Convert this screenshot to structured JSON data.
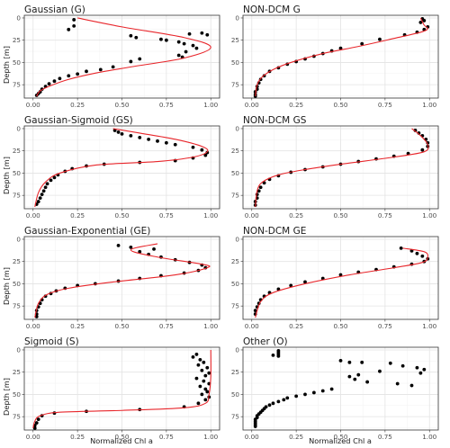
{
  "chart_data": {
    "type": "scatter",
    "facet_layout": "4x2",
    "xlabel": "Normalized Chl a",
    "ylabel": "Depth [m]",
    "xlim": [
      0,
      1
    ],
    "ylim": [
      90,
      -3
    ],
    "y_reversed": true,
    "x_ticks": [
      "0.00",
      "0.25",
      "0.50",
      "0.75",
      "1.00"
    ],
    "x_tick_values": [
      0,
      0.25,
      0.5,
      0.75,
      1.0
    ],
    "y_ticks": [
      "0",
      "25",
      "50",
      "75"
    ],
    "y_tick_values": [
      0,
      25,
      50,
      75
    ],
    "grid": true,
    "point_color": "#000000",
    "line_color": "#e8262b",
    "panels": [
      {
        "title": "Gaussian (G)",
        "fit_curve": [
          [
            0.25,
            0
          ],
          [
            0.5,
            10
          ],
          [
            0.85,
            22
          ],
          [
            1.0,
            33
          ],
          [
            0.85,
            45
          ],
          [
            0.55,
            55
          ],
          [
            0.35,
            62
          ],
          [
            0.2,
            69
          ],
          [
            0.1,
            76
          ],
          [
            0.04,
            82
          ],
          [
            0.02,
            88
          ]
        ],
        "points": [
          [
            0.23,
            2
          ],
          [
            0.23,
            9
          ],
          [
            0.2,
            13
          ],
          [
            0.95,
            17
          ],
          [
            0.88,
            18
          ],
          [
            0.98,
            19
          ],
          [
            0.55,
            20
          ],
          [
            0.58,
            22
          ],
          [
            0.72,
            24
          ],
          [
            0.75,
            25
          ],
          [
            0.82,
            27
          ],
          [
            0.85,
            29
          ],
          [
            0.9,
            31
          ],
          [
            0.92,
            34
          ],
          [
            0.86,
            38
          ],
          [
            0.82,
            42
          ],
          [
            0.84,
            44
          ],
          [
            0.6,
            46
          ],
          [
            0.55,
            49
          ],
          [
            0.45,
            55
          ],
          [
            0.38,
            58
          ],
          [
            0.3,
            60
          ],
          [
            0.25,
            63
          ],
          [
            0.2,
            65
          ],
          [
            0.15,
            68
          ],
          [
            0.12,
            71
          ],
          [
            0.09,
            74
          ],
          [
            0.07,
            77
          ],
          [
            0.05,
            80
          ],
          [
            0.04,
            83
          ],
          [
            0.03,
            85
          ],
          [
            0.02,
            87
          ]
        ]
      },
      {
        "title": "NON-DCM G",
        "fit_curve": [
          [
            0.95,
            0
          ],
          [
            0.97,
            8
          ],
          [
            0.99,
            12
          ],
          [
            0.95,
            16
          ],
          [
            0.8,
            23
          ],
          [
            0.6,
            32
          ],
          [
            0.4,
            40
          ],
          [
            0.22,
            50
          ],
          [
            0.12,
            58
          ],
          [
            0.06,
            66
          ],
          [
            0.03,
            75
          ],
          [
            0.02,
            88
          ]
        ],
        "points": [
          [
            0.96,
            1
          ],
          [
            0.97,
            3
          ],
          [
            0.95,
            5
          ],
          [
            0.99,
            10
          ],
          [
            0.97,
            13
          ],
          [
            0.93,
            16
          ],
          [
            0.86,
            19
          ],
          [
            0.72,
            24
          ],
          [
            0.62,
            29
          ],
          [
            0.5,
            34
          ],
          [
            0.45,
            37
          ],
          [
            0.4,
            40
          ],
          [
            0.35,
            43
          ],
          [
            0.3,
            46
          ],
          [
            0.25,
            49
          ],
          [
            0.2,
            52
          ],
          [
            0.15,
            56
          ],
          [
            0.1,
            60
          ],
          [
            0.07,
            65
          ],
          [
            0.05,
            69
          ],
          [
            0.04,
            73
          ],
          [
            0.03,
            77
          ],
          [
            0.03,
            80
          ],
          [
            0.02,
            83
          ],
          [
            0.02,
            86
          ],
          [
            0.02,
            88
          ]
        ]
      },
      {
        "title": "Gaussian-Sigmoid (GS)",
        "fit_curve": [
          [
            0.45,
            0
          ],
          [
            0.6,
            5
          ],
          [
            0.8,
            12
          ],
          [
            0.95,
            20
          ],
          [
            0.98,
            26
          ],
          [
            0.9,
            32
          ],
          [
            0.7,
            37
          ],
          [
            0.35,
            41
          ],
          [
            0.15,
            50
          ],
          [
            0.07,
            60
          ],
          [
            0.03,
            72
          ],
          [
            0.01,
            88
          ]
        ],
        "points": [
          [
            0.46,
            2
          ],
          [
            0.48,
            4
          ],
          [
            0.5,
            6
          ],
          [
            0.55,
            8
          ],
          [
            0.6,
            10
          ],
          [
            0.65,
            12
          ],
          [
            0.7,
            14
          ],
          [
            0.75,
            16
          ],
          [
            0.8,
            18
          ],
          [
            0.9,
            21
          ],
          [
            0.95,
            24
          ],
          [
            0.98,
            27
          ],
          [
            0.97,
            30
          ],
          [
            0.9,
            33
          ],
          [
            0.8,
            36
          ],
          [
            0.6,
            38
          ],
          [
            0.4,
            40
          ],
          [
            0.3,
            42
          ],
          [
            0.22,
            45
          ],
          [
            0.18,
            48
          ],
          [
            0.14,
            52
          ],
          [
            0.12,
            55
          ],
          [
            0.1,
            58
          ],
          [
            0.08,
            62
          ],
          [
            0.07,
            66
          ],
          [
            0.06,
            70
          ],
          [
            0.05,
            74
          ],
          [
            0.04,
            78
          ],
          [
            0.03,
            82
          ],
          [
            0.02,
            85
          ]
        ]
      },
      {
        "title": "NON-DCM GS",
        "fit_curve": [
          [
            0.9,
            0
          ],
          [
            0.95,
            8
          ],
          [
            0.99,
            18
          ],
          [
            0.97,
            26
          ],
          [
            0.8,
            32
          ],
          [
            0.5,
            40
          ],
          [
            0.3,
            46
          ],
          [
            0.15,
            52
          ],
          [
            0.06,
            60
          ],
          [
            0.03,
            70
          ],
          [
            0.02,
            88
          ]
        ],
        "points": [
          [
            0.92,
            2
          ],
          [
            0.94,
            5
          ],
          [
            0.96,
            8
          ],
          [
            0.98,
            12
          ],
          [
            0.99,
            16
          ],
          [
            0.99,
            20
          ],
          [
            0.96,
            24
          ],
          [
            0.88,
            28
          ],
          [
            0.8,
            31
          ],
          [
            0.7,
            34
          ],
          [
            0.6,
            37
          ],
          [
            0.5,
            40
          ],
          [
            0.4,
            43
          ],
          [
            0.3,
            46
          ],
          [
            0.22,
            49
          ],
          [
            0.15,
            53
          ],
          [
            0.1,
            57
          ],
          [
            0.07,
            61
          ],
          [
            0.05,
            66
          ],
          [
            0.04,
            70
          ],
          [
            0.03,
            74
          ],
          [
            0.03,
            78
          ],
          [
            0.02,
            82
          ],
          [
            0.02,
            86
          ]
        ]
      },
      {
        "title": "Gaussian-Exponential (GE)",
        "fit_curve": [
          [
            0.7,
            5
          ],
          [
            0.55,
            12
          ],
          [
            0.7,
            20
          ],
          [
            0.95,
            28
          ],
          [
            0.98,
            32
          ],
          [
            0.8,
            40
          ],
          [
            0.45,
            48
          ],
          [
            0.2,
            55
          ],
          [
            0.08,
            62
          ],
          [
            0.03,
            72
          ],
          [
            0.01,
            88
          ]
        ],
        "points": [
          [
            0.48,
            7
          ],
          [
            0.55,
            9
          ],
          [
            0.68,
            11
          ],
          [
            0.6,
            14
          ],
          [
            0.65,
            17
          ],
          [
            0.72,
            20
          ],
          [
            0.8,
            23
          ],
          [
            0.88,
            26
          ],
          [
            0.95,
            29
          ],
          [
            0.97,
            32
          ],
          [
            0.93,
            35
          ],
          [
            0.85,
            38
          ],
          [
            0.72,
            41
          ],
          [
            0.6,
            44
          ],
          [
            0.48,
            47
          ],
          [
            0.35,
            50
          ],
          [
            0.25,
            52
          ],
          [
            0.18,
            55
          ],
          [
            0.13,
            58
          ],
          [
            0.1,
            61
          ],
          [
            0.07,
            64
          ],
          [
            0.05,
            68
          ],
          [
            0.04,
            72
          ],
          [
            0.03,
            76
          ],
          [
            0.02,
            80
          ],
          [
            0.02,
            84
          ],
          [
            0.02,
            87
          ]
        ]
      },
      {
        "title": "NON-DCM GE",
        "fit_curve": [
          [
            0.85,
            10
          ],
          [
            0.97,
            14
          ],
          [
            0.99,
            20
          ],
          [
            0.96,
            26
          ],
          [
            0.8,
            32
          ],
          [
            0.55,
            40
          ],
          [
            0.3,
            50
          ],
          [
            0.12,
            60
          ],
          [
            0.05,
            70
          ],
          [
            0.02,
            88
          ]
        ],
        "points": [
          [
            0.84,
            10
          ],
          [
            0.9,
            13
          ],
          [
            0.93,
            16
          ],
          [
            0.96,
            19
          ],
          [
            0.99,
            22
          ],
          [
            0.97,
            25
          ],
          [
            0.9,
            28
          ],
          [
            0.8,
            31
          ],
          [
            0.7,
            34
          ],
          [
            0.6,
            37
          ],
          [
            0.5,
            40
          ],
          [
            0.4,
            44
          ],
          [
            0.3,
            48
          ],
          [
            0.22,
            52
          ],
          [
            0.15,
            56
          ],
          [
            0.1,
            60
          ],
          [
            0.07,
            64
          ],
          [
            0.05,
            68
          ],
          [
            0.04,
            72
          ],
          [
            0.03,
            76
          ],
          [
            0.02,
            80
          ],
          [
            0.02,
            84
          ]
        ]
      },
      {
        "title": "Sigmoid (S)",
        "fit_curve": [
          [
            1.0,
            0
          ],
          [
            1.0,
            30
          ],
          [
            0.99,
            50
          ],
          [
            0.97,
            60
          ],
          [
            0.85,
            65
          ],
          [
            0.5,
            68
          ],
          [
            0.15,
            70
          ],
          [
            0.04,
            74
          ],
          [
            0.01,
            80
          ],
          [
            0.0,
            88
          ]
        ],
        "points": [
          [
            0.92,
            5
          ],
          [
            0.9,
            8
          ],
          [
            0.94,
            11
          ],
          [
            0.96,
            14
          ],
          [
            0.93,
            17
          ],
          [
            0.98,
            20
          ],
          [
            0.95,
            23
          ],
          [
            0.99,
            26
          ],
          [
            0.97,
            29
          ],
          [
            0.92,
            32
          ],
          [
            0.96,
            35
          ],
          [
            0.99,
            38
          ],
          [
            0.94,
            41
          ],
          [
            0.97,
            44
          ],
          [
            0.98,
            47
          ],
          [
            0.95,
            50
          ],
          [
            0.99,
            53
          ],
          [
            0.97,
            56
          ],
          [
            0.93,
            60
          ],
          [
            0.85,
            64
          ],
          [
            0.6,
            67
          ],
          [
            0.3,
            69
          ],
          [
            0.12,
            71
          ],
          [
            0.05,
            74
          ],
          [
            0.03,
            78
          ],
          [
            0.02,
            82
          ],
          [
            0.01,
            85
          ],
          [
            0.01,
            88
          ]
        ]
      },
      {
        "title": "Other (O)",
        "fit_curve": [],
        "points": [
          [
            0.15,
            1
          ],
          [
            0.15,
            3
          ],
          [
            0.15,
            5
          ],
          [
            0.15,
            7
          ],
          [
            0.12,
            6
          ],
          [
            0.5,
            12
          ],
          [
            0.55,
            14
          ],
          [
            0.62,
            14
          ],
          [
            0.78,
            15
          ],
          [
            0.85,
            18
          ],
          [
            0.93,
            20
          ],
          [
            0.97,
            22
          ],
          [
            0.72,
            24
          ],
          [
            0.95,
            26
          ],
          [
            0.6,
            28
          ],
          [
            0.55,
            30
          ],
          [
            0.58,
            33
          ],
          [
            0.65,
            36
          ],
          [
            0.82,
            38
          ],
          [
            0.9,
            40
          ],
          [
            0.45,
            44
          ],
          [
            0.4,
            46
          ],
          [
            0.35,
            48
          ],
          [
            0.3,
            50
          ],
          [
            0.25,
            52
          ],
          [
            0.2,
            54
          ],
          [
            0.18,
            56
          ],
          [
            0.15,
            58
          ],
          [
            0.12,
            60
          ],
          [
            0.1,
            62
          ],
          [
            0.08,
            64
          ],
          [
            0.07,
            66
          ],
          [
            0.06,
            68
          ],
          [
            0.05,
            70
          ],
          [
            0.04,
            72
          ],
          [
            0.03,
            74
          ],
          [
            0.03,
            76
          ],
          [
            0.02,
            78
          ],
          [
            0.02,
            80
          ],
          [
            0.02,
            82
          ],
          [
            0.02,
            84
          ],
          [
            0.02,
            86
          ]
        ]
      }
    ]
  }
}
